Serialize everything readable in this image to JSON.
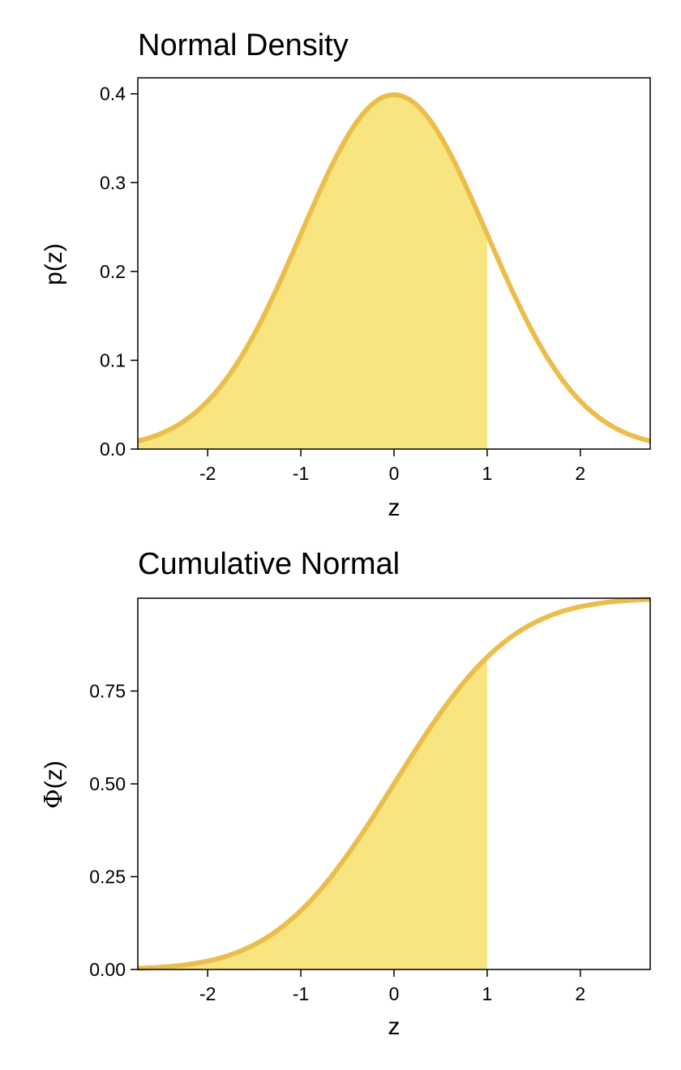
{
  "colors": {
    "line": "#EBBE4B",
    "fill": "#F8E57F",
    "axis": "#000000",
    "background": "#FFFFFF"
  },
  "chart_data": [
    {
      "type": "area",
      "title": "Normal Density",
      "xlabel": "z",
      "ylabel": {
        "prefix": "p",
        "open": "(",
        "var": "z",
        "close": ")"
      },
      "function": "normal_pdf",
      "xlim": [
        -2.75,
        2.75
      ],
      "ylim": [
        0,
        0.418
      ],
      "xticks": [
        -2,
        -1,
        0,
        1,
        2
      ],
      "xtick_labels": [
        "-2",
        "-1",
        "0",
        "1",
        "2"
      ],
      "yticks": [
        0.0,
        0.1,
        0.2,
        0.3,
        0.4
      ],
      "ytick_labels": [
        "0.0",
        "0.1",
        "0.2",
        "0.3",
        "0.4"
      ],
      "shade_to": 1,
      "x": [
        -2.75,
        -2.5,
        -2.25,
        -2.0,
        -1.75,
        -1.5,
        -1.25,
        -1.0,
        -0.75,
        -0.5,
        -0.25,
        0.0,
        0.25,
        0.5,
        0.75,
        1.0,
        1.25,
        1.5,
        1.75,
        2.0,
        2.25,
        2.5,
        2.75
      ],
      "y": [
        0.009,
        0.018,
        0.032,
        0.054,
        0.086,
        0.13,
        0.183,
        0.242,
        0.301,
        0.352,
        0.387,
        0.399,
        0.387,
        0.352,
        0.301,
        0.242,
        0.183,
        0.13,
        0.086,
        0.054,
        0.032,
        0.018,
        0.009
      ],
      "grid": false,
      "legend": "none"
    },
    {
      "type": "area",
      "title": "Cumulative Normal",
      "xlabel": "z",
      "ylabel": {
        "prefix": "Φ",
        "open": "(",
        "var": "z",
        "close": ")"
      },
      "function": "normal_cdf",
      "xlim": [
        -2.75,
        2.75
      ],
      "ylim": [
        0,
        1.0
      ],
      "xticks": [
        -2,
        -1,
        0,
        1,
        2
      ],
      "xtick_labels": [
        "-2",
        "-1",
        "0",
        "1",
        "2"
      ],
      "yticks": [
        0.0,
        0.25,
        0.5,
        0.75
      ],
      "ytick_labels": [
        "0.00",
        "0.25",
        "0.50",
        "0.75"
      ],
      "shade_to": 1,
      "x": [
        -2.75,
        -2.5,
        -2.25,
        -2.0,
        -1.75,
        -1.5,
        -1.25,
        -1.0,
        -0.75,
        -0.5,
        -0.25,
        0.0,
        0.25,
        0.5,
        0.75,
        1.0,
        1.25,
        1.5,
        1.75,
        2.0,
        2.25,
        2.5,
        2.75
      ],
      "y": [
        0.003,
        0.006,
        0.012,
        0.023,
        0.04,
        0.067,
        0.106,
        0.159,
        0.227,
        0.309,
        0.401,
        0.5,
        0.599,
        0.691,
        0.773,
        0.841,
        0.894,
        0.933,
        0.96,
        0.977,
        0.988,
        0.994,
        0.997
      ],
      "grid": false,
      "legend": "none"
    }
  ]
}
